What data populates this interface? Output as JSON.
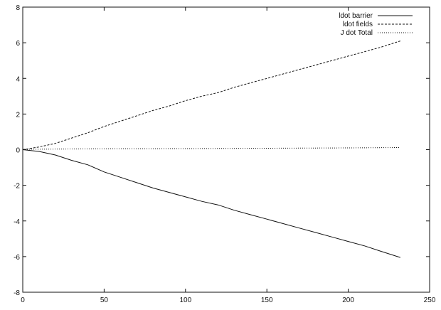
{
  "chart_data": {
    "type": "line",
    "xlim": [
      0,
      250
    ],
    "ylim": [
      -8,
      8
    ],
    "xticks": [
      0,
      50,
      100,
      150,
      200,
      250
    ],
    "yticks": [
      -8,
      -6,
      -4,
      -2,
      0,
      2,
      4,
      6,
      8
    ],
    "grid": false,
    "legend_position": "top-right",
    "series": [
      {
        "name": "ldot barrier",
        "style": "solid",
        "color": "#111111",
        "x": [
          0,
          10,
          20,
          30,
          40,
          50,
          60,
          70,
          80,
          90,
          100,
          110,
          120,
          130,
          140,
          150,
          160,
          170,
          180,
          190,
          200,
          210,
          220,
          232
        ],
        "y": [
          0.0,
          -0.1,
          -0.3,
          -0.6,
          -0.85,
          -1.25,
          -1.55,
          -1.85,
          -2.15,
          -2.4,
          -2.65,
          -2.9,
          -3.1,
          -3.4,
          -3.65,
          -3.9,
          -4.15,
          -4.4,
          -4.65,
          -4.9,
          -5.15,
          -5.4,
          -5.7,
          -6.05
        ]
      },
      {
        "name": "ldot fields",
        "style": "dashed",
        "color": "#111111",
        "x": [
          0,
          10,
          20,
          30,
          40,
          50,
          60,
          70,
          80,
          90,
          100,
          110,
          120,
          130,
          140,
          150,
          160,
          170,
          180,
          190,
          200,
          210,
          220,
          232
        ],
        "y": [
          0.0,
          0.15,
          0.35,
          0.65,
          0.95,
          1.3,
          1.6,
          1.9,
          2.2,
          2.45,
          2.75,
          3.0,
          3.2,
          3.5,
          3.75,
          4.0,
          4.25,
          4.5,
          4.75,
          5.0,
          5.25,
          5.5,
          5.75,
          6.1
        ]
      },
      {
        "name": "J dot Total",
        "style": "dotted",
        "color": "#111111",
        "x": [
          0,
          50,
          100,
          150,
          200,
          232
        ],
        "y": [
          0.02,
          0.05,
          0.06,
          0.08,
          0.1,
          0.12
        ]
      }
    ]
  }
}
